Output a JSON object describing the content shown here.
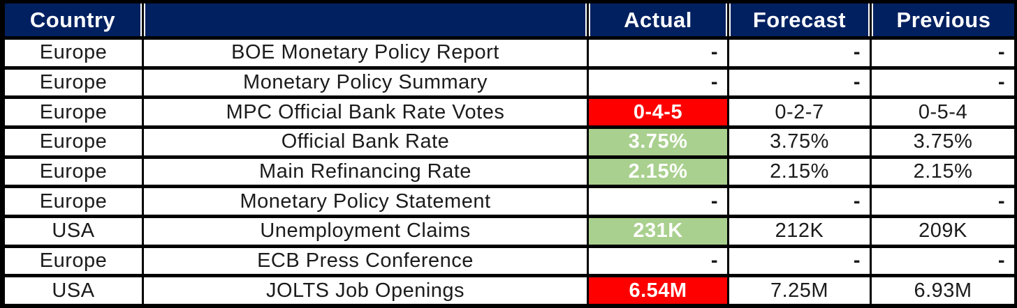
{
  "colors": {
    "header_bg": "#002060",
    "beat_green": "#A9D08E",
    "miss_red": "#FE0000",
    "grid_line": "#000000",
    "header_text": "#FFFFFF",
    "body_text": "#1B1B1B"
  },
  "table": {
    "headers": [
      "Country",
      "",
      "Actual",
      "Forecast",
      "Previous"
    ],
    "rows": [
      {
        "country": "Europe",
        "event": "BOE Monetary Policy Report",
        "actual": "-",
        "forecast": "-",
        "previous": "-",
        "highlight": null
      },
      {
        "country": "Europe",
        "event": "Monetary Policy Summary",
        "actual": "-",
        "forecast": "-",
        "previous": "-",
        "highlight": null
      },
      {
        "country": "Europe",
        "event": "MPC Official Bank Rate Votes",
        "actual": "0-4-5",
        "forecast": "0-2-7",
        "previous": "0-5-4",
        "highlight": "red"
      },
      {
        "country": "Europe",
        "event": "Official Bank Rate",
        "actual": "3.75%",
        "forecast": "3.75%",
        "previous": "3.75%",
        "highlight": "green"
      },
      {
        "country": "Europe",
        "event": "Main Refinancing Rate",
        "actual": "2.15%",
        "forecast": "2.15%",
        "previous": "2.15%",
        "highlight": "green"
      },
      {
        "country": "Europe",
        "event": "Monetary Policy Statement",
        "actual": "-",
        "forecast": "-",
        "previous": "-",
        "highlight": null
      },
      {
        "country": "USA",
        "event": "Unemployment Claims",
        "actual": "231K",
        "forecast": "212K",
        "previous": "209K",
        "highlight": "green"
      },
      {
        "country": "Europe",
        "event": "ECB Press Conference",
        "actual": "-",
        "forecast": "-",
        "previous": "-",
        "highlight": null
      },
      {
        "country": "USA",
        "event": "JOLTS Job Openings",
        "actual": "6.54M",
        "forecast": "7.25M",
        "previous": "6.93M",
        "highlight": "red"
      }
    ]
  }
}
